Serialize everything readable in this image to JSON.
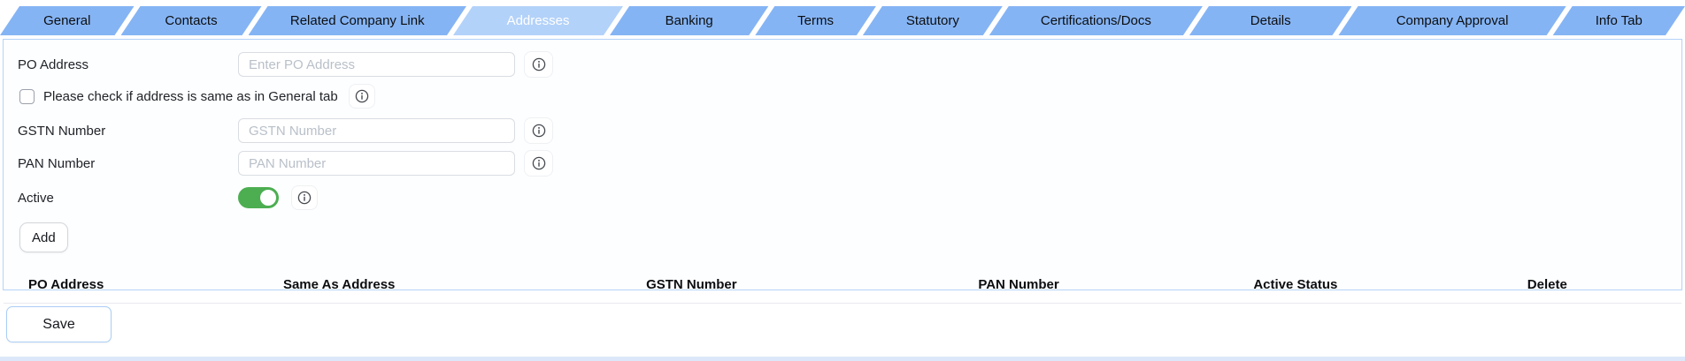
{
  "tabs": {
    "items": [
      {
        "label": "General",
        "active": false
      },
      {
        "label": "Contacts",
        "active": false
      },
      {
        "label": "Related Company Link",
        "active": false
      },
      {
        "label": "Addresses",
        "active": true
      },
      {
        "label": "Banking",
        "active": false
      },
      {
        "label": "Terms",
        "active": false
      },
      {
        "label": "Statutory",
        "active": false
      },
      {
        "label": "Certifications/Docs",
        "active": false
      },
      {
        "label": "Details",
        "active": false
      },
      {
        "label": "Company Approval",
        "active": false
      },
      {
        "label": "Info Tab",
        "active": false
      }
    ]
  },
  "form": {
    "po_address": {
      "label": "PO Address",
      "value": "",
      "placeholder": "Enter PO Address"
    },
    "same_as_checkbox": {
      "label": "Please check if address is same as in General tab",
      "checked": false
    },
    "gstn": {
      "label": "GSTN Number",
      "value": "",
      "placeholder": "GSTN Number"
    },
    "pan": {
      "label": "PAN Number",
      "value": "",
      "placeholder": "PAN Number"
    },
    "active_toggle": {
      "label": "Active",
      "on": true
    },
    "add_button_label": "Add"
  },
  "table": {
    "headers": [
      "PO Address",
      "Same As Address",
      "GSTN Number",
      "PAN Number",
      "Active Status",
      "Delete"
    ],
    "rows": []
  },
  "footer": {
    "save_button_label": "Save"
  },
  "icons": {
    "info": "info-icon"
  },
  "colors": {
    "tab_bar": "#85b4f4",
    "tab_active": "#b3d2f9",
    "tab_active_text": "#ffffff",
    "panel_border": "#b5d3f7",
    "toggle_on": "#4cae51",
    "bottom_strip": "#dce8fa"
  }
}
